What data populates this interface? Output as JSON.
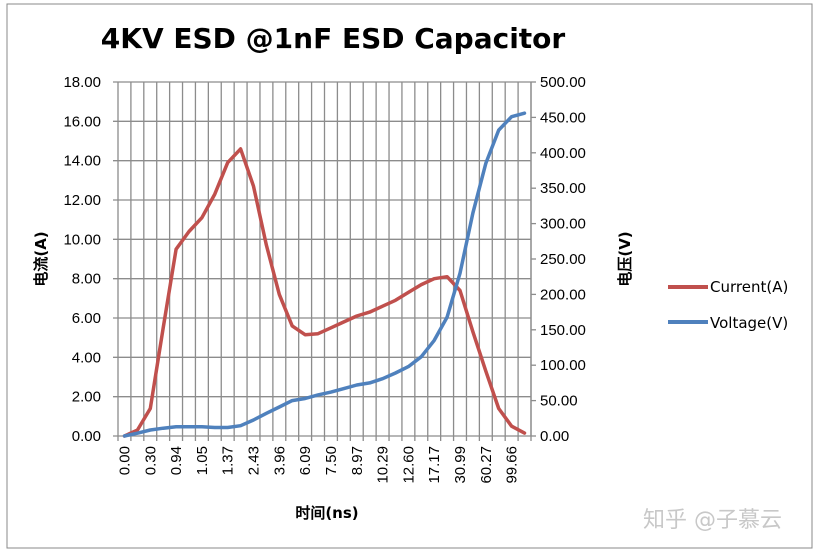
{
  "chart_data": {
    "type": "line",
    "title": "4KV ESD @1nF ESD Capacitor",
    "xlabel": "时间(ns)",
    "ylabel": "电流(A)",
    "y2label": "电压(V)",
    "x_tick_labels": [
      "0.00",
      "0.30",
      "0.94",
      "1.05",
      "1.37",
      "2.43",
      "3.96",
      "6.09",
      "7.50",
      "8.97",
      "10.29",
      "12.60",
      "17.17",
      "30.99",
      "60.27",
      "99.66"
    ],
    "category_count": 32,
    "ylim": [
      0,
      18
    ],
    "y_ticks": [
      "0.00",
      "2.00",
      "4.00",
      "6.00",
      "8.00",
      "10.00",
      "12.00",
      "14.00",
      "16.00",
      "18.00"
    ],
    "y2lim": [
      0,
      500
    ],
    "y2_ticks": [
      "0.00",
      "50.00",
      "100.00",
      "150.00",
      "200.00",
      "250.00",
      "300.00",
      "350.00",
      "400.00",
      "450.00",
      "500.00"
    ],
    "grid": true,
    "legend_position": "right",
    "series": [
      {
        "name": "Current(A)",
        "axis": "left",
        "color": "#C0504D",
        "values": [
          0,
          0.3,
          1.4,
          5.5,
          9.5,
          10.4,
          11.1,
          12.3,
          13.9,
          14.6,
          12.7,
          9.7,
          7.2,
          5.6,
          5.15,
          5.2,
          5.5,
          5.8,
          6.1,
          6.3,
          6.6,
          6.9,
          7.3,
          7.7,
          8.0,
          8.1,
          7.4,
          5.3,
          3.3,
          1.4,
          0.5,
          0.15
        ]
      },
      {
        "name": "Voltage(V)",
        "axis": "right",
        "color": "#4F81BD",
        "values": [
          0,
          4,
          8.5,
          11,
          13,
          13,
          13,
          12,
          12,
          14.6,
          22.6,
          32,
          41,
          50,
          53,
          58,
          62,
          67,
          72,
          75,
          81,
          89,
          98,
          112,
          135,
          168,
          230,
          315,
          385,
          432,
          451,
          456
        ]
      }
    ]
  },
  "watermark": "知乎 @子慕云"
}
